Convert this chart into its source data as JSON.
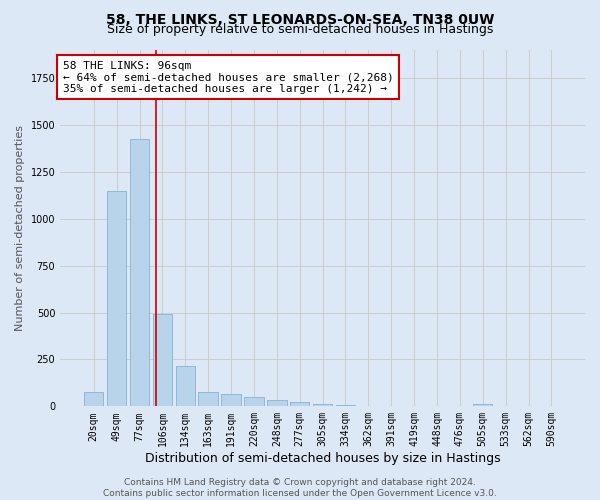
{
  "title": "58, THE LINKS, ST LEONARDS-ON-SEA, TN38 0UW",
  "subtitle": "Size of property relative to semi-detached houses in Hastings",
  "xlabel": "Distribution of semi-detached houses by size in Hastings",
  "ylabel": "Number of semi-detached properties",
  "categories": [
    "20sqm",
    "49sqm",
    "77sqm",
    "106sqm",
    "134sqm",
    "163sqm",
    "191sqm",
    "220sqm",
    "248sqm",
    "277sqm",
    "305sqm",
    "334sqm",
    "362sqm",
    "391sqm",
    "419sqm",
    "448sqm",
    "476sqm",
    "505sqm",
    "533sqm",
    "562sqm",
    "590sqm"
  ],
  "values": [
    75,
    1150,
    1425,
    490,
    215,
    78,
    68,
    52,
    35,
    25,
    15,
    5,
    2,
    2,
    0,
    0,
    0,
    15,
    0,
    0,
    0
  ],
  "ylim": [
    0,
    1900
  ],
  "bar_color": "#b8d4ea",
  "bar_edge_color": "#7aaacf",
  "red_line_x": 2.72,
  "annotation_line1": "58 THE LINKS: 96sqm",
  "annotation_line2": "← 64% of semi-detached houses are smaller (2,268)",
  "annotation_line3": "35% of semi-detached houses are larger (1,242) →",
  "annotation_box_color": "#ffffff",
  "annotation_box_edge": "#cc0000",
  "footer_text": "Contains HM Land Registry data © Crown copyright and database right 2024.\nContains public sector information licensed under the Open Government Licence v3.0.",
  "fig_bg_color": "#dce8f5",
  "plot_bg_color": "#dce8f5",
  "title_fontsize": 10,
  "subtitle_fontsize": 9,
  "xlabel_fontsize": 9,
  "ylabel_fontsize": 8,
  "tick_fontsize": 7,
  "annot_fontsize": 8,
  "footer_fontsize": 6.5
}
